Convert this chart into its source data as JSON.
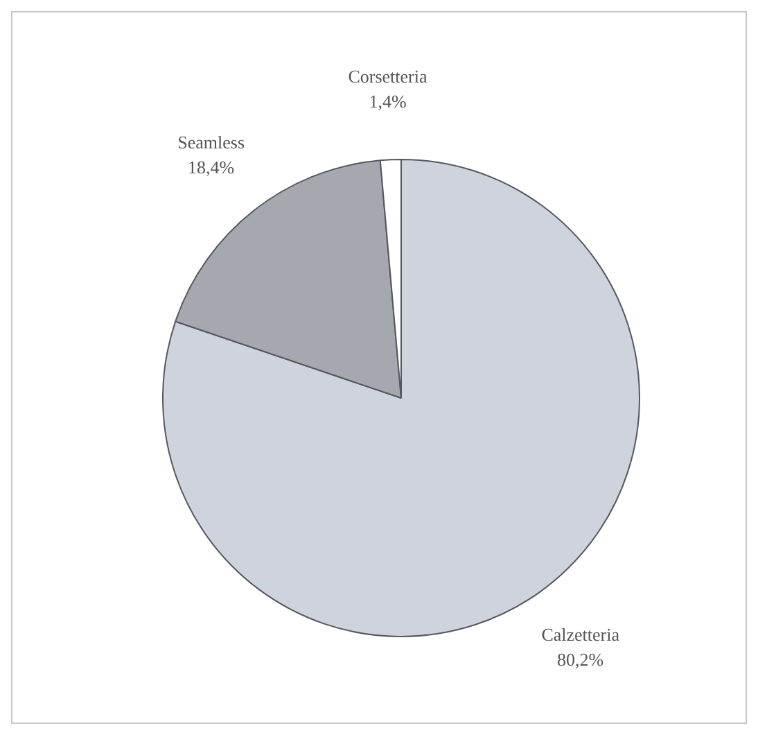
{
  "chart_data": {
    "type": "pie",
    "categories": [
      "Calzetteria",
      "Seamless",
      "Corsetteria"
    ],
    "values": [
      80.2,
      18.4,
      1.4
    ],
    "value_labels": [
      "80,2%",
      "18,4%",
      "1,4%"
    ],
    "colors": [
      "#cfd3dc",
      "#a5a8ae",
      "#ffffff"
    ],
    "legend": false
  }
}
